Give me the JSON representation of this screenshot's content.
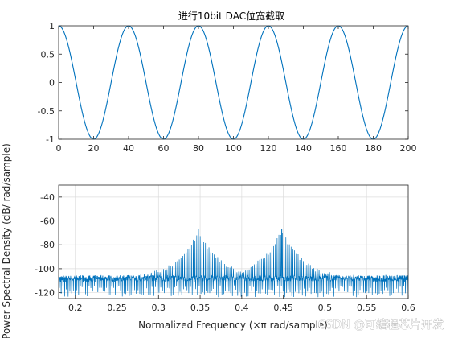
{
  "watermark": "CSDN @可编程芯片开发",
  "chart_data": [
    {
      "type": "line",
      "title": "进行10bit DAC位宽截取",
      "xlabel": "",
      "ylabel": "",
      "xlim": [
        0,
        200
      ],
      "ylim": [
        -1,
        1
      ],
      "grid": false,
      "xticks": [
        "0",
        "20",
        "40",
        "60",
        "80",
        "100",
        "120",
        "140",
        "160",
        "180",
        "200"
      ],
      "yticks": [
        "1",
        "0.5",
        "0",
        "-0.5",
        "-1"
      ],
      "series": [
        {
          "color": "#0072BD",
          "waveform": "cosine",
          "period": 40,
          "amplitude": 1,
          "peaks_x": [
            0,
            40,
            80,
            120,
            160,
            200
          ],
          "troughs_x": [
            20,
            60,
            100,
            140,
            180
          ]
        }
      ]
    },
    {
      "type": "line",
      "title": "",
      "xlabel": "Normalized Frequency  (×π rad/sample)",
      "ylabel": "Power Spectral Density (dB/ rad/sample)",
      "xlim": [
        0.18,
        0.6
      ],
      "ylim": [
        -125,
        -30
      ],
      "grid": true,
      "xticks": [
        "0.2",
        "0.25",
        "0.3",
        "0.35",
        "0.4",
        "0.45",
        "0.5",
        "0.55",
        "0.6"
      ],
      "yticks": [
        "-40",
        "-60",
        "-80",
        "-100",
        "-120"
      ],
      "series": [
        {
          "color": "#0072BD",
          "noise_floor_db": -108,
          "peaks": [
            {
              "x": 0.348,
              "y": -67
            },
            {
              "x": 0.448,
              "y": -67
            }
          ]
        }
      ]
    }
  ]
}
